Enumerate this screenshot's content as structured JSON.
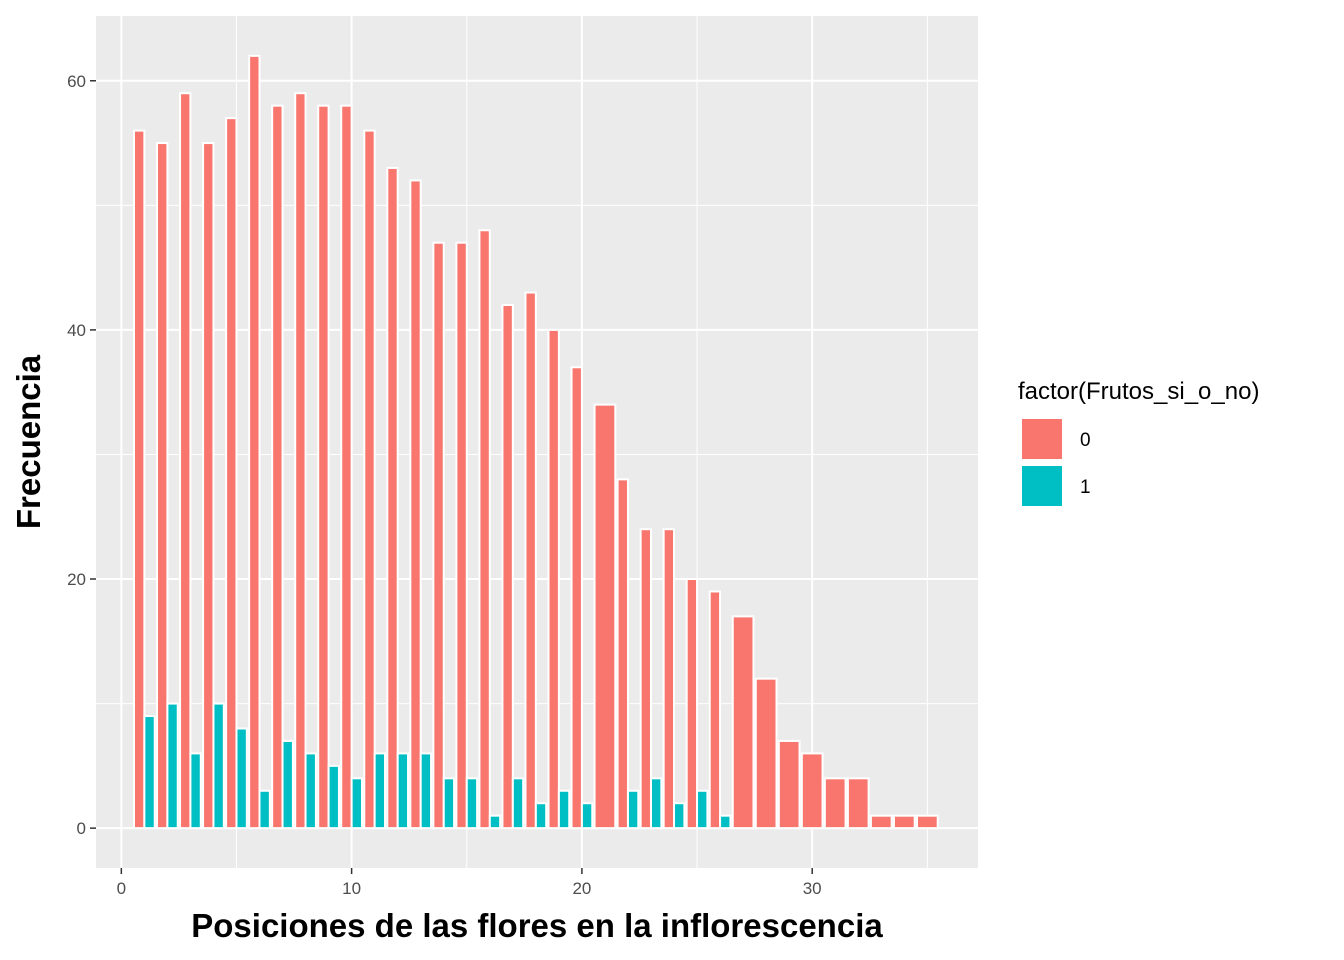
{
  "chart_data": {
    "type": "bar",
    "xlabel": "Posiciones de las flores en la inflorescencia",
    "ylabel": "Frecuencia",
    "xlim": [
      -1.1,
      37.2
    ],
    "ylim": [
      -3.2,
      65.2
    ],
    "x_ticks": [
      0,
      10,
      20,
      30
    ],
    "y_ticks": [
      0,
      20,
      40,
      60
    ],
    "grid": true,
    "legend": {
      "title": "factor(Frutos_si_o_no)",
      "placement": "right",
      "entries": [
        {
          "label": "0",
          "color": "#F8766D"
        },
        {
          "label": "1",
          "color": "#00BFC4"
        }
      ]
    },
    "series": [
      {
        "group": "0",
        "color": "#F8766D",
        "x": [
          1,
          2,
          3,
          4,
          5,
          6,
          7,
          8,
          9,
          10,
          11,
          12,
          13,
          14,
          15,
          16,
          17,
          18,
          19,
          20,
          21,
          22,
          23,
          24,
          25,
          26,
          27,
          28,
          29,
          30,
          31,
          32,
          33,
          34,
          35
        ],
        "values": [
          56,
          55,
          59,
          55,
          57,
          62,
          58,
          59,
          58,
          58,
          56,
          53,
          52,
          47,
          47,
          48,
          42,
          43,
          40,
          37,
          34,
          28,
          24,
          24,
          20,
          19,
          17,
          12,
          7,
          6,
          4,
          4,
          1,
          1,
          1
        ]
      },
      {
        "group": "1",
        "color": "#00BFC4",
        "x": [
          1,
          2,
          3,
          4,
          5,
          6,
          7,
          8,
          9,
          10,
          11,
          12,
          13,
          14,
          15,
          16,
          17,
          18,
          19,
          20,
          22,
          23,
          24,
          25,
          26
        ],
        "values": [
          9,
          10,
          6,
          10,
          8,
          3,
          7,
          6,
          5,
          4,
          6,
          6,
          6,
          4,
          4,
          1,
          4,
          2,
          3,
          2,
          3,
          4,
          2,
          3,
          1
        ]
      }
    ]
  }
}
